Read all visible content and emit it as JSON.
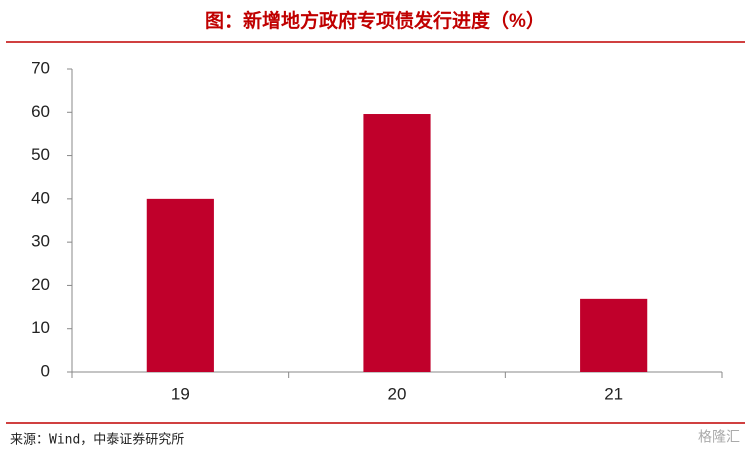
{
  "chart_data": {
    "type": "bar",
    "title": "图：新增地方政府专项债发行进度（%）",
    "categories": [
      "19",
      "20",
      "21"
    ],
    "values": [
      40,
      59.6,
      16.9
    ],
    "color": "#c0002b",
    "ylim": [
      0,
      70
    ],
    "yticks": [
      0,
      10,
      20,
      30,
      40,
      50,
      60,
      70
    ],
    "grid": false,
    "source": "来源：Wind，中泰证券研究所",
    "watermark": "格隆汇"
  }
}
